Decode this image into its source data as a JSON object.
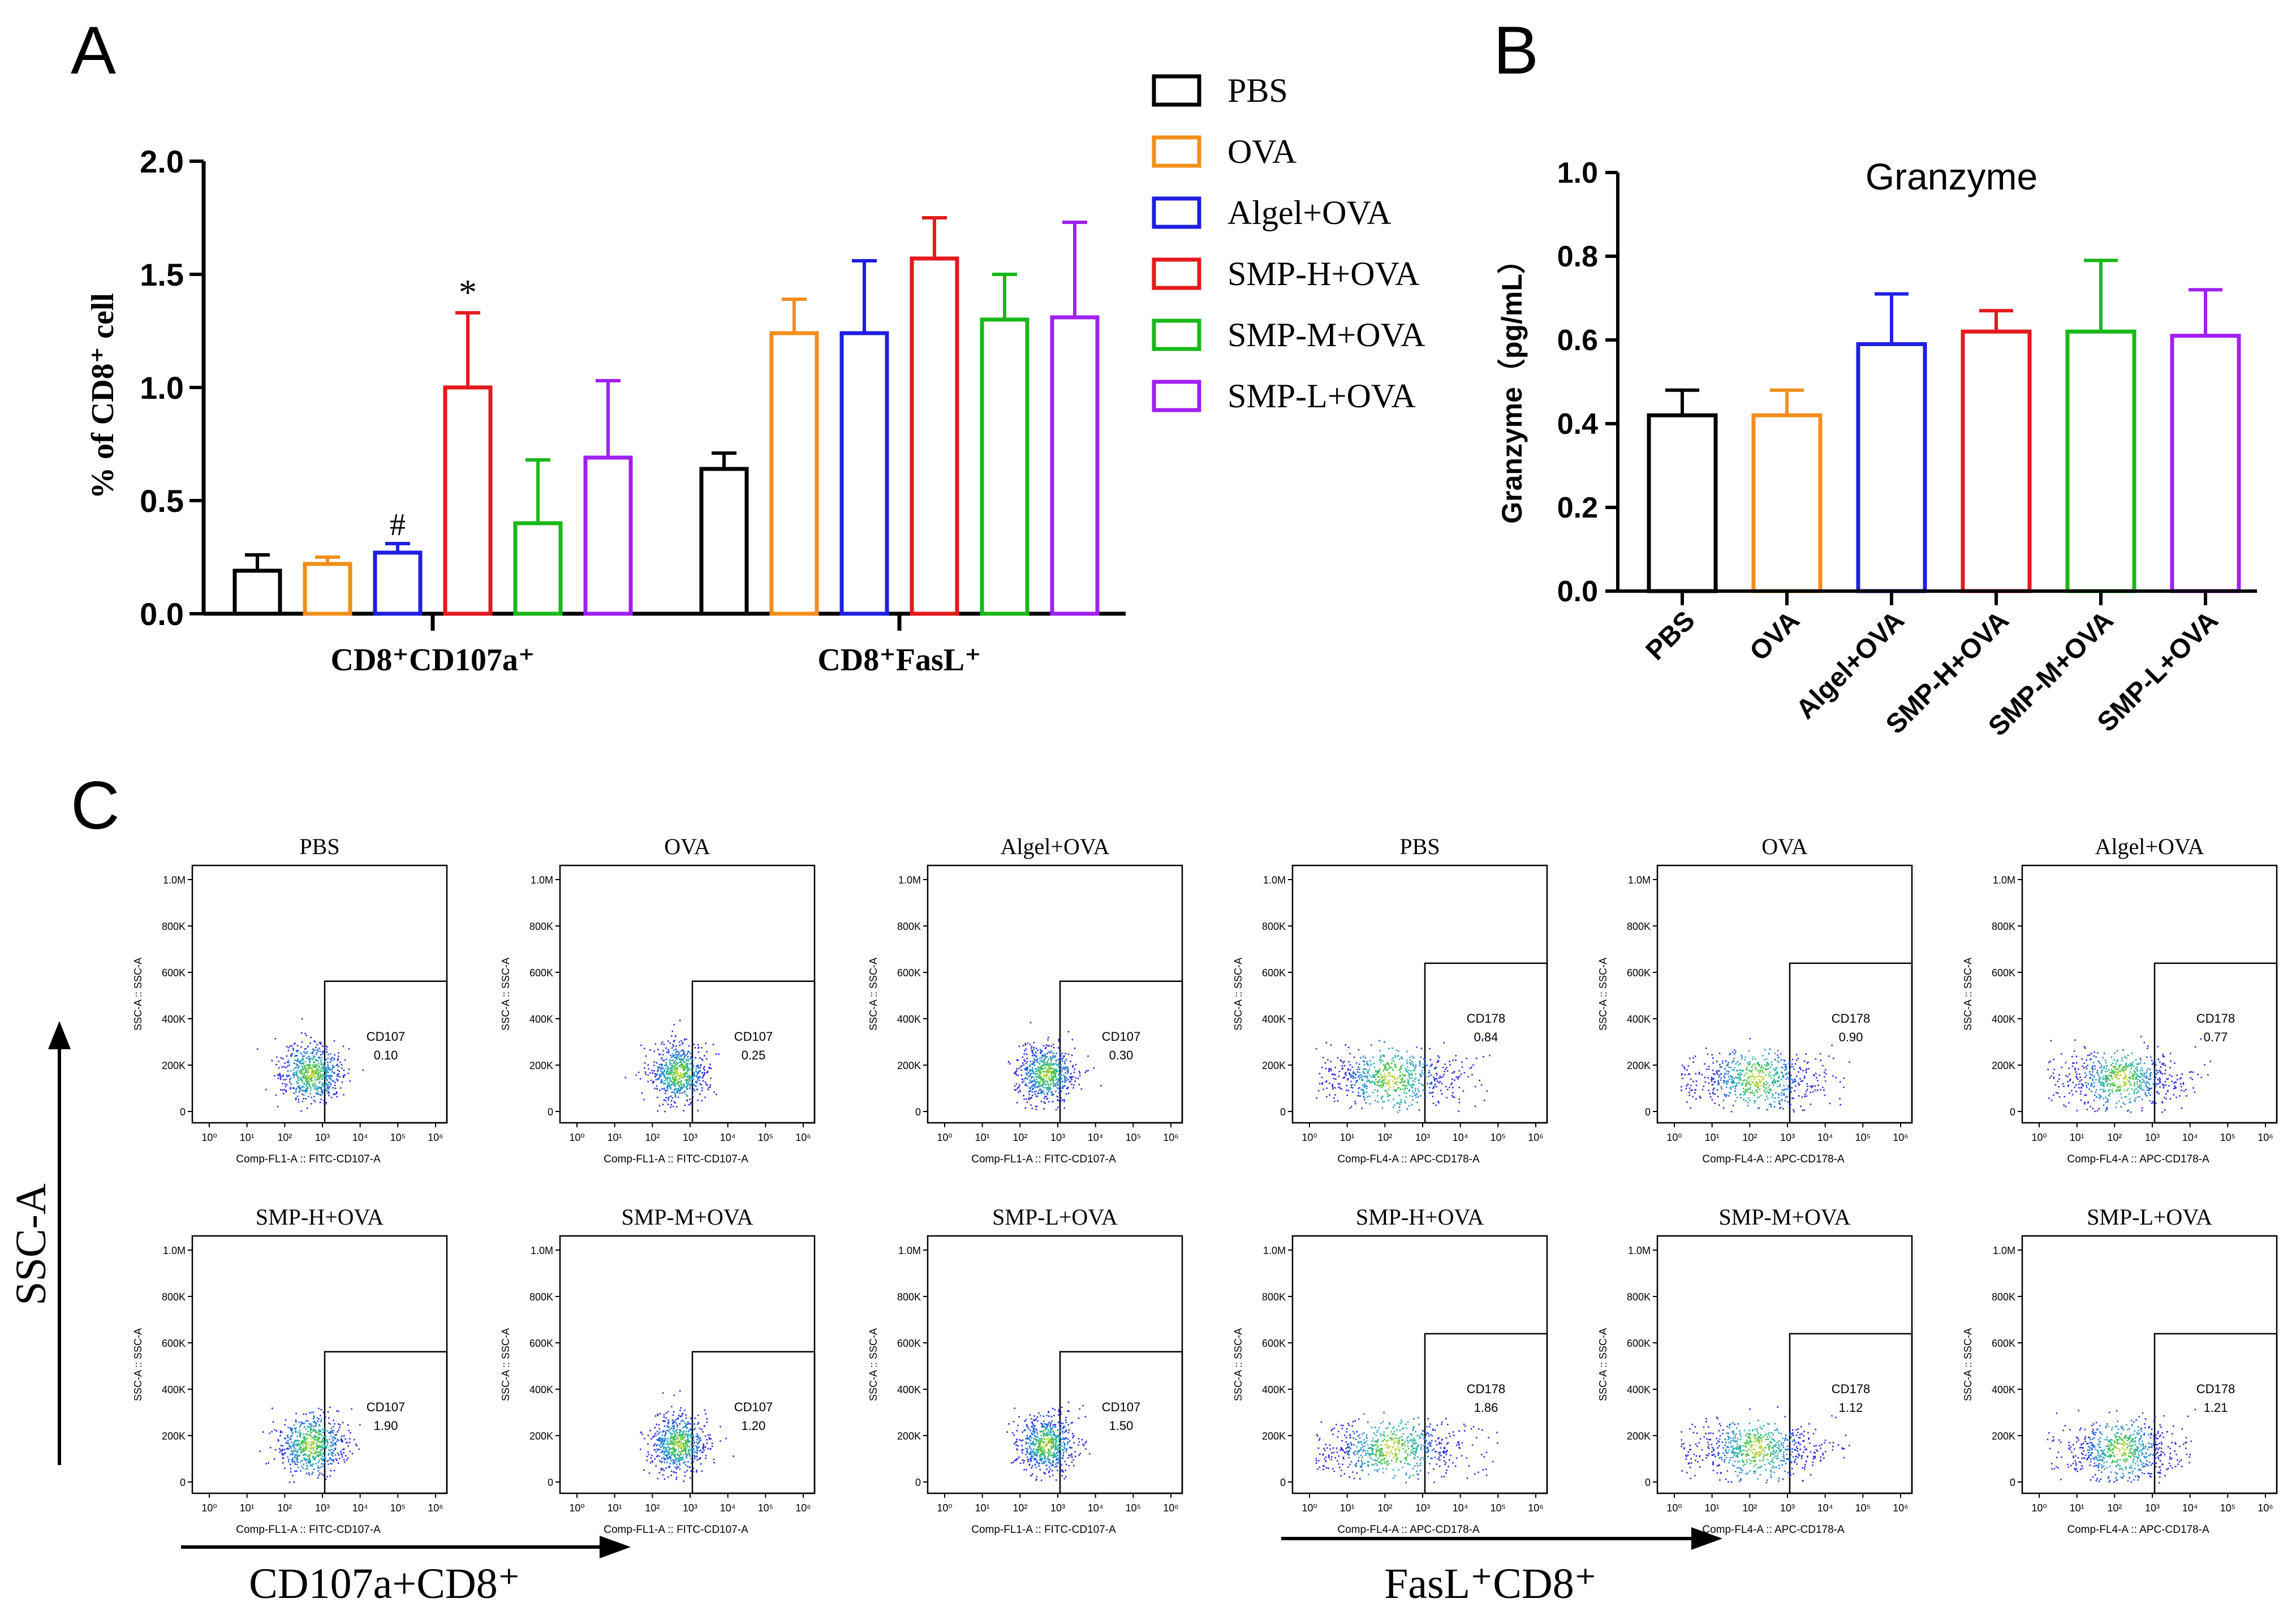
{
  "panel_letters": {
    "a": "A",
    "b": "B",
    "c": "C"
  },
  "legend": [
    {
      "label": "PBS",
      "color": "#000000"
    },
    {
      "label": "OVA",
      "color": "#f28e1c"
    },
    {
      "label": "Algel+OVA",
      "color": "#1f1fe0"
    },
    {
      "label": "SMP-H+OVA",
      "color": "#e41a1c"
    },
    {
      "label": "SMP-M+OVA",
      "color": "#19b819"
    },
    {
      "label": "SMP-L+OVA",
      "color": "#a020f0"
    }
  ],
  "chart_data": [
    {
      "id": "A",
      "type": "bar",
      "ylabel": "% of CD8⁺ cell",
      "ylim": [
        0,
        2.0
      ],
      "yticks": [
        "0.0",
        "0.5",
        "1.0",
        "1.5",
        "2.0"
      ],
      "groups": [
        {
          "label": "CD8⁺CD107a⁺",
          "values": [
            0.19,
            0.22,
            0.27,
            1.0,
            0.4,
            0.69
          ],
          "errors": [
            0.07,
            0.03,
            0.04,
            0.33,
            0.28,
            0.34
          ],
          "annotations": [
            "",
            "",
            "#",
            "*",
            "",
            ""
          ]
        },
        {
          "label": "CD8⁺FasL⁺",
          "values": [
            0.64,
            1.24,
            1.24,
            1.57,
            1.3,
            1.31
          ],
          "errors": [
            0.07,
            0.15,
            0.32,
            0.18,
            0.2,
            0.42
          ],
          "annotations": [
            "",
            "",
            "",
            "",
            "",
            ""
          ]
        }
      ],
      "series": [
        "PBS",
        "OVA",
        "Algel+OVA",
        "SMP-H+OVA",
        "SMP-M+OVA",
        "SMP-L+OVA"
      ]
    },
    {
      "id": "B",
      "type": "bar",
      "title": "Granzyme",
      "ylabel": "Granzyme（pg/mL）",
      "ylim": [
        0,
        1.0
      ],
      "yticks": [
        "0.0",
        "0.2",
        "0.4",
        "0.6",
        "0.8",
        "1.0"
      ],
      "categories": [
        "PBS",
        "OVA",
        "Algel+OVA",
        "SMP-H+OVA",
        "SMP-M+OVA",
        "SMP-L+OVA"
      ],
      "values": [
        0.42,
        0.42,
        0.59,
        0.62,
        0.62,
        0.61
      ],
      "errors": [
        0.06,
        0.06,
        0.12,
        0.05,
        0.17,
        0.11
      ]
    }
  ],
  "flow": {
    "y_axis_label": "SSC-A",
    "left_x_label": "CD107a+CD8⁺",
    "right_x_label": "FasL⁺CD8⁺",
    "y_ticks": [
      "1.0M",
      "800K",
      "600K",
      "400K",
      "200K",
      "0"
    ],
    "x_ticks": [
      "10⁰",
      "10¹",
      "10²",
      "10³",
      "10⁴",
      "10⁵",
      "10⁶"
    ],
    "ssc_label": "SSC-A :: SSC-A",
    "xlabel_cd107": "Comp-FL1-A :: FITC-CD107-A",
    "xlabel_cd178": "Comp-FL4-A :: APC-CD178-A",
    "plots": [
      {
        "title": "PBS",
        "gate": "CD107",
        "value": "0.10",
        "marker": "cd107",
        "spread": 1.0,
        "row": 0,
        "col": 0
      },
      {
        "title": "OVA",
        "gate": "CD107",
        "value": "0.25",
        "marker": "cd107",
        "spread": 0.9,
        "row": 0,
        "col": 1
      },
      {
        "title": "Algel+OVA",
        "gate": "CD107",
        "value": "0.30",
        "marker": "cd107",
        "spread": 0.9,
        "row": 0,
        "col": 2
      },
      {
        "title": "PBS",
        "gate": "CD178",
        "value": "0.84",
        "marker": "cd178",
        "spread": 1.6,
        "row": 0,
        "col": 3
      },
      {
        "title": "OVA",
        "gate": "CD178",
        "value": "0.90",
        "marker": "cd178",
        "spread": 1.5,
        "row": 0,
        "col": 4
      },
      {
        "title": "Algel+OVA",
        "gate": "CD178",
        "value": "0.77",
        "marker": "cd178",
        "spread": 1.4,
        "row": 0,
        "col": 5
      },
      {
        "title": "SMP-H+OVA",
        "gate": "CD107",
        "value": "1.90",
        "marker": "cd107",
        "spread": 1.1,
        "row": 1,
        "col": 0
      },
      {
        "title": "SMP-M+OVA",
        "gate": "CD107",
        "value": "1.20",
        "marker": "cd107",
        "spread": 0.9,
        "row": 1,
        "col": 1
      },
      {
        "title": "SMP-L+OVA",
        "gate": "CD107",
        "value": "1.50",
        "marker": "cd107",
        "spread": 0.9,
        "row": 1,
        "col": 2
      },
      {
        "title": "SMP-H+OVA",
        "gate": "CD178",
        "value": "1.86",
        "marker": "cd178",
        "spread": 1.7,
        "row": 1,
        "col": 3
      },
      {
        "title": "SMP-M+OVA",
        "gate": "CD178",
        "value": "1.12",
        "marker": "cd178",
        "spread": 1.5,
        "row": 1,
        "col": 4
      },
      {
        "title": "SMP-L+OVA",
        "gate": "CD178",
        "value": "1.21",
        "marker": "cd178",
        "spread": 1.3,
        "row": 1,
        "col": 5
      }
    ]
  }
}
